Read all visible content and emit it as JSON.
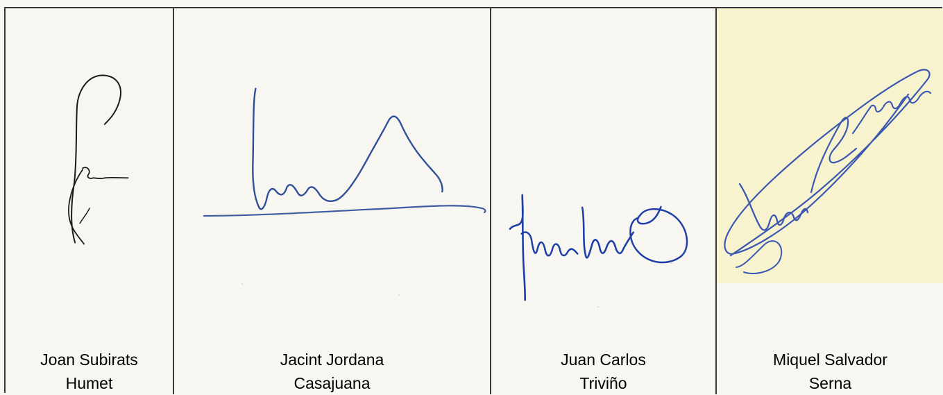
{
  "signatories": [
    {
      "name_line1": "Joan Subirats",
      "name_line2": "Humet",
      "signature_color": "#1a1a1a"
    },
    {
      "name_line1": "Jacint Jordana",
      "name_line2": "Casajuana",
      "signature_color": "#2f4f9a"
    },
    {
      "name_line1": "Juan Carlos",
      "name_line2": "Triviño",
      "signature_color": "#1f3ea8"
    },
    {
      "name_line1": "Miquel Salvador",
      "name_line2": "Serna",
      "signature_color": "#3b57b0"
    }
  ]
}
